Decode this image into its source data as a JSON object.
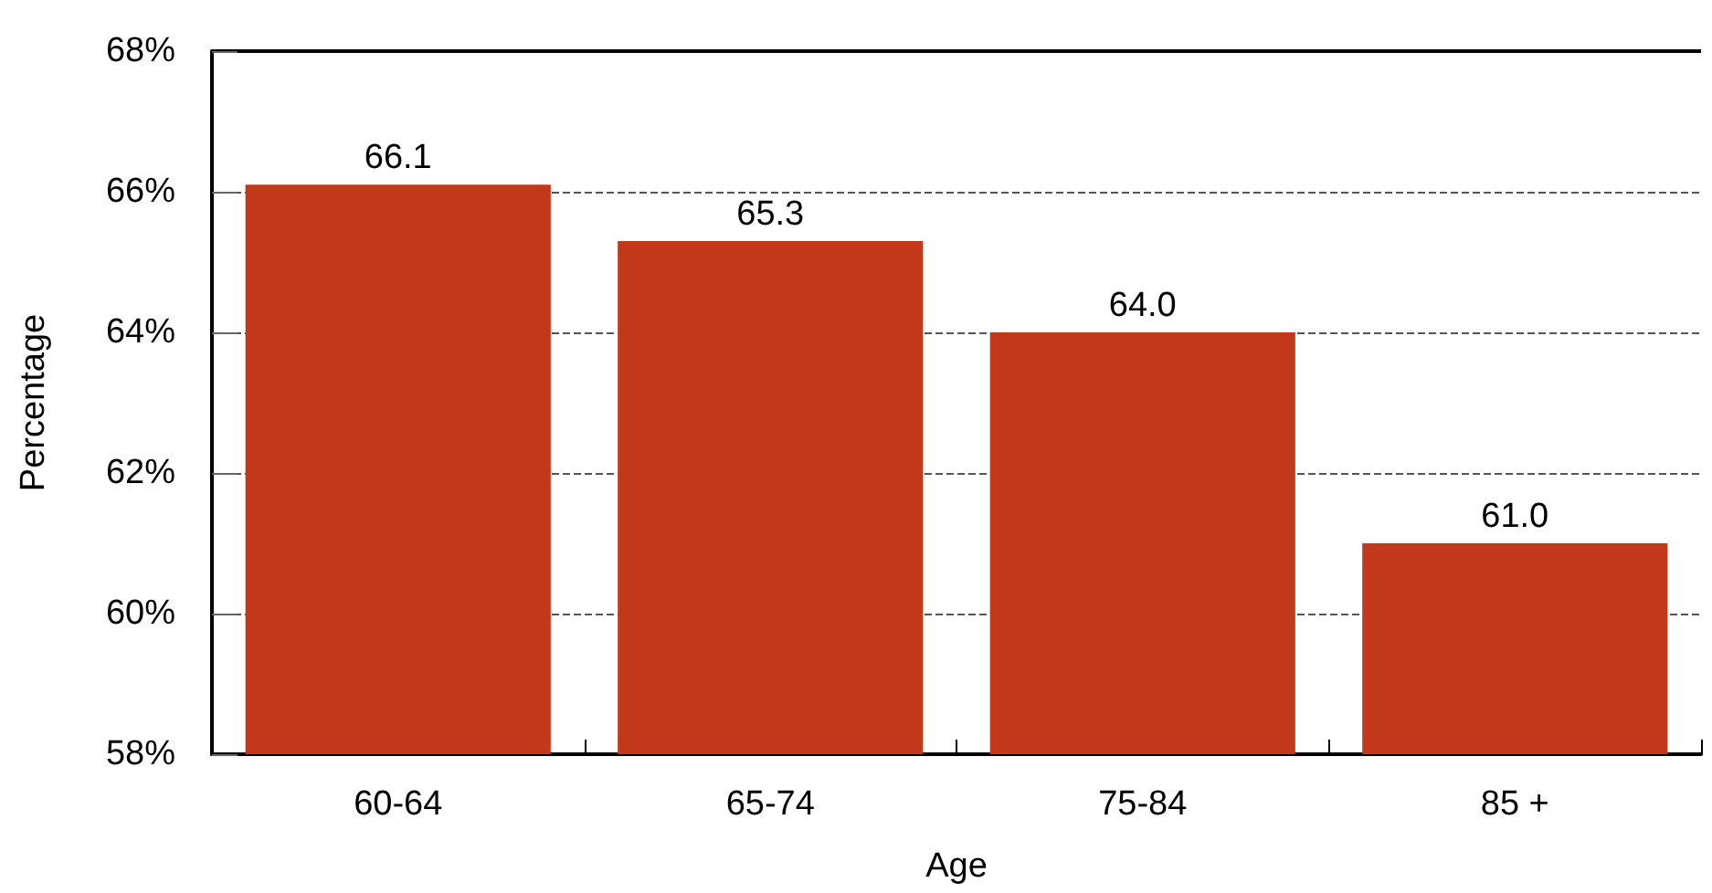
{
  "chart_data": {
    "type": "bar",
    "xlabel": "Age",
    "ylabel": "Percentage",
    "categories": [
      "60-64",
      "65-74",
      "75-84",
      "85 +"
    ],
    "values": [
      66.1,
      65.3,
      64.0,
      61.0
    ],
    "value_labels": [
      "66.1",
      "65.3",
      "64.0",
      "61.0"
    ],
    "color": "#c1391a",
    "ylim": [
      58,
      68
    ],
    "yticks": [
      {
        "value": 58,
        "label": "58%"
      },
      {
        "value": 60,
        "label": "60%"
      },
      {
        "value": 62,
        "label": "62%"
      },
      {
        "value": 64,
        "label": "64%"
      },
      {
        "value": 66,
        "label": "66%"
      },
      {
        "value": 68,
        "label": "68%"
      }
    ],
    "grid": "y",
    "line_style": "dashed"
  }
}
